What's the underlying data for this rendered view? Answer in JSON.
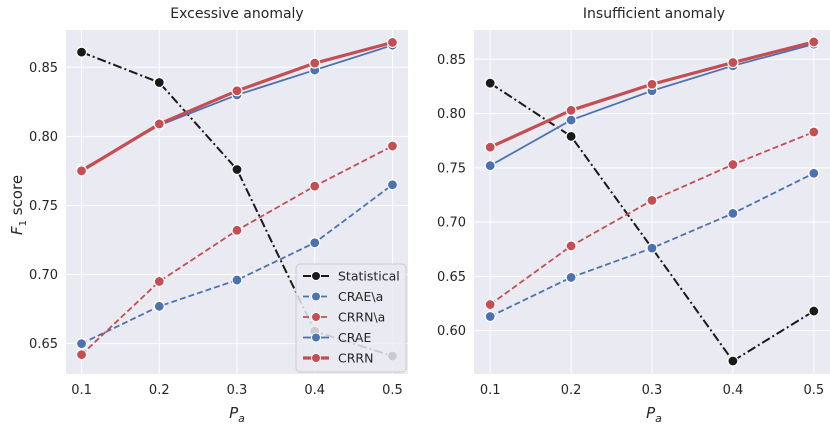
{
  "chart_data": [
    {
      "type": "line",
      "title": "Excessive anomaly",
      "xlabel": "P_a",
      "ylabel": "F_1 score",
      "x": [
        0.1,
        0.2,
        0.3,
        0.4,
        0.5
      ],
      "xticks": [
        "0.1",
        "0.2",
        "0.3",
        "0.4",
        "0.5"
      ],
      "ylim": [
        0.628,
        0.877
      ],
      "yticks": [
        "0.65",
        "0.70",
        "0.75",
        "0.80",
        "0.85"
      ],
      "ytick_values": [
        0.65,
        0.7,
        0.75,
        0.8,
        0.85
      ],
      "legend": "lower-right",
      "series": [
        {
          "name": "Statistical",
          "color": "#1a1a1a",
          "style": "dashdot",
          "values": [
            0.861,
            0.839,
            0.776,
            0.659,
            0.641
          ]
        },
        {
          "name": "CRAE\\a",
          "color": "#4c72b0",
          "style": "dashed",
          "values": [
            0.65,
            0.677,
            0.696,
            0.723,
            0.765
          ]
        },
        {
          "name": "CRRN\\a",
          "color": "#c44e52",
          "style": "dashed",
          "values": [
            0.642,
            0.695,
            0.732,
            0.764,
            0.793
          ]
        },
        {
          "name": "CRAE",
          "color": "#4c72b0",
          "style": "solid",
          "values": [
            0.776,
            0.808,
            0.83,
            0.848,
            0.866
          ]
        },
        {
          "name": "CRRN",
          "color": "#c44e52",
          "style": "thick",
          "values": [
            0.775,
            0.809,
            0.833,
            0.853,
            0.868
          ]
        }
      ]
    },
    {
      "type": "line",
      "title": "Insufficient anomaly",
      "xlabel": "P_a",
      "ylabel": "",
      "x": [
        0.1,
        0.2,
        0.3,
        0.4,
        0.5
      ],
      "xticks": [
        "0.1",
        "0.2",
        "0.3",
        "0.4",
        "0.5"
      ],
      "ylim": [
        0.56,
        0.877
      ],
      "yticks": [
        "0.60",
        "0.65",
        "0.70",
        "0.75",
        "0.80",
        "0.85"
      ],
      "ytick_values": [
        0.6,
        0.65,
        0.7,
        0.75,
        0.8,
        0.85
      ],
      "legend": "none",
      "series": [
        {
          "name": "Statistical",
          "color": "#1a1a1a",
          "style": "dashdot",
          "values": [
            0.828,
            0.779,
            0.676,
            0.572,
            0.618
          ]
        },
        {
          "name": "CRAE\\a",
          "color": "#4c72b0",
          "style": "dashed",
          "values": [
            0.613,
            0.649,
            0.676,
            0.708,
            0.745
          ]
        },
        {
          "name": "CRRN\\a",
          "color": "#c44e52",
          "style": "dashed",
          "values": [
            0.624,
            0.678,
            0.72,
            0.753,
            0.783
          ]
        },
        {
          "name": "CRAE",
          "color": "#4c72b0",
          "style": "solid",
          "values": [
            0.752,
            0.794,
            0.821,
            0.844,
            0.864
          ]
        },
        {
          "name": "CRRN",
          "color": "#c44e52",
          "style": "thick",
          "values": [
            0.769,
            0.803,
            0.827,
            0.847,
            0.866
          ]
        }
      ]
    }
  ]
}
